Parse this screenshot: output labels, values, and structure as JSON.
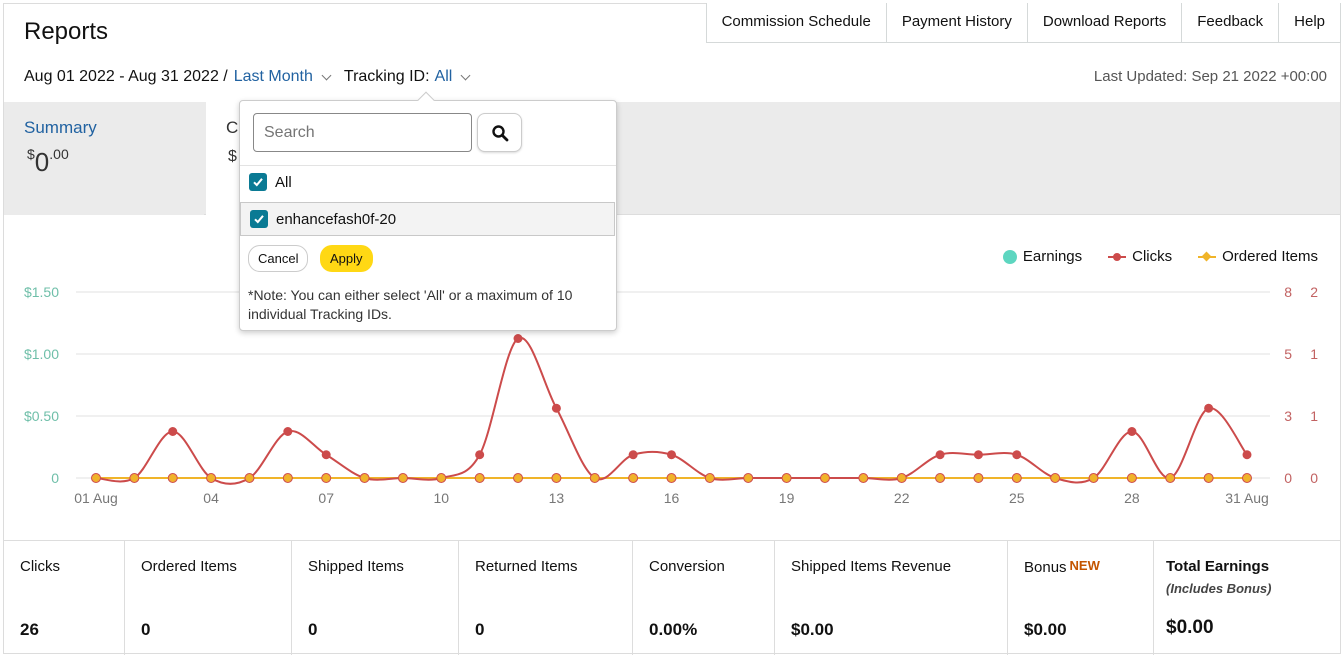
{
  "header": {
    "title": "Reports",
    "tabs": [
      "Commission Schedule",
      "Payment History",
      "Download Reports",
      "Feedback",
      "Help"
    ],
    "date_range": "Aug 01 2022 - Aug 31 2022 /",
    "date_preset": "Last Month",
    "tracking_label": "Tracking ID:",
    "tracking_value": "All",
    "last_updated": "Last Updated: Sep 21 2022 +00:00"
  },
  "summary": {
    "label": "Summary",
    "currency": "$",
    "whole": "0",
    "cents": ".00",
    "card2_label": "Co",
    "card2_value": "$"
  },
  "popup": {
    "search_placeholder": "Search",
    "options": [
      {
        "label": "All",
        "checked": true
      },
      {
        "label": "enhancefash0f-20",
        "checked": true
      }
    ],
    "cancel_label": "Cancel",
    "apply_label": "Apply",
    "note": "*Note: You can either select 'All' or a maximum of 10 individual Tracking IDs."
  },
  "chart_data": {
    "type": "line",
    "x": [
      "01 Aug",
      "02",
      "03",
      "04",
      "05",
      "06",
      "07",
      "08",
      "09",
      "10",
      "11",
      "12",
      "13",
      "14",
      "15",
      "16",
      "17",
      "18",
      "19",
      "20",
      "21",
      "22",
      "23",
      "24",
      "25",
      "26",
      "27",
      "28",
      "29",
      "30",
      "31 Aug"
    ],
    "x_tick_labels": [
      "01 Aug",
      "04",
      "07",
      "10",
      "13",
      "16",
      "19",
      "22",
      "25",
      "28",
      "31 Aug"
    ],
    "series": [
      {
        "name": "Earnings",
        "color": "#5dd6c0",
        "axis": "left",
        "values": [
          0,
          0,
          0,
          0,
          0,
          0,
          0,
          0,
          0,
          0,
          0,
          0,
          0,
          0,
          0,
          0,
          0,
          0,
          0,
          0,
          0,
          0,
          0,
          0,
          0,
          0,
          0,
          0,
          0,
          0,
          0
        ]
      },
      {
        "name": "Clicks",
        "color": "#cc4b4b",
        "axis": "right1",
        "values": [
          0,
          0,
          2,
          0,
          0,
          2,
          1,
          0,
          0,
          0,
          1,
          6,
          3,
          0,
          1,
          1,
          0,
          0,
          0,
          0,
          0,
          0,
          1,
          1,
          1,
          0,
          0,
          2,
          0,
          3,
          1
        ]
      },
      {
        "name": "Ordered Items",
        "color": "#f0b429",
        "axis": "right2",
        "values": [
          0,
          0,
          0,
          0,
          0,
          0,
          0,
          0,
          0,
          0,
          0,
          0,
          0,
          0,
          0,
          0,
          0,
          0,
          0,
          0,
          0,
          0,
          0,
          0,
          0,
          0,
          0,
          0,
          0,
          0,
          0
        ]
      }
    ],
    "left_axis_ticks": [
      "0",
      "$0.50",
      "$1.00",
      "$1.50"
    ],
    "left_axis_ylim": [
      0,
      1.5
    ],
    "right1_axis_ticks": [
      "0",
      "3",
      "5",
      "8"
    ],
    "right1_axis_ylim": [
      0,
      8
    ],
    "right2_axis_ticks": [
      "0",
      "1",
      "1",
      "2"
    ],
    "grid": true,
    "legend_position": "top-right"
  },
  "stats": [
    {
      "label": "Clicks",
      "value": "26"
    },
    {
      "label": "Ordered Items",
      "value": "0"
    },
    {
      "label": "Shipped Items",
      "value": "0"
    },
    {
      "label": "Returned Items",
      "value": "0"
    },
    {
      "label": "Conversion",
      "value": "0.00%"
    },
    {
      "label": "Shipped Items Revenue",
      "value": "$0.00"
    },
    {
      "label": "Bonus",
      "badge": "NEW",
      "value": "$0.00"
    },
    {
      "label": "Total Earnings",
      "sub": "(Includes Bonus)",
      "value": "$0.00"
    }
  ],
  "colors": {
    "link": "#2162a1",
    "checkbox": "#0a7a94",
    "apply_button": "#ffd814",
    "earnings": "#5dd6c0",
    "clicks": "#cc4b4b",
    "ordered_items": "#f0b429",
    "new_badge": "#c45500"
  },
  "icons": {
    "search_button": "search-icon",
    "checkbox": "check-icon",
    "dropdown": "chevron-down-icon"
  }
}
